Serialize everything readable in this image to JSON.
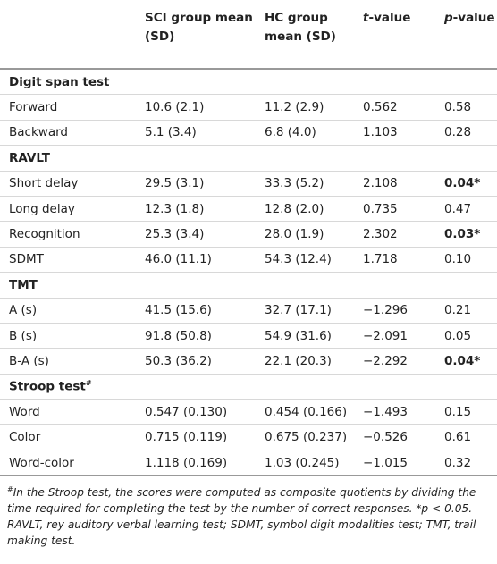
{
  "table": {
    "header": [
      {
        "text": ""
      },
      {
        "text": "SCI group mean (SD)"
      },
      {
        "text": "HC group mean (SD)"
      },
      {
        "italic": "t",
        "text": "-value"
      },
      {
        "italic": "p",
        "text": "-value"
      }
    ],
    "sections": [
      {
        "title": "Digit span test",
        "rows": [
          {
            "cells": [
              "Forward",
              "10.6 (2.1)",
              "11.2 (2.9)",
              "0.562",
              "0.58"
            ]
          },
          {
            "cells": [
              "Backward",
              "5.1 (3.4)",
              "6.8 (4.0)",
              "1.103",
              "0.28"
            ]
          }
        ]
      },
      {
        "title": "RAVLT",
        "rows": [
          {
            "cells": [
              "Short delay",
              "29.5 (3.1)",
              "33.3 (5.2)",
              "2.108",
              "0.04*"
            ],
            "bold_p": true
          },
          {
            "cells": [
              "Long delay",
              "12.3 (1.8)",
              "12.8 (2.0)",
              "0.735",
              "0.47"
            ]
          },
          {
            "cells": [
              "Recognition",
              "25.3 (3.4)",
              "28.0 (1.9)",
              "2.302",
              "0.03*"
            ],
            "bold_p": true
          },
          {
            "cells": [
              "SDMT",
              "46.0 (11.1)",
              "54.3 (12.4)",
              "1.718",
              "0.10"
            ]
          }
        ]
      },
      {
        "title": "TMT",
        "rows": [
          {
            "cells": [
              "A (s)",
              "41.5 (15.6)",
              "32.7 (17.1)",
              "−1.296",
              "0.21"
            ]
          },
          {
            "cells": [
              "B (s)",
              "91.8 (50.8)",
              "54.9 (31.6)",
              "−2.091",
              "0.05"
            ]
          },
          {
            "cells": [
              "B-A (s)",
              "50.3 (36.2)",
              "22.1 (20.3)",
              "−2.292",
              "0.04*"
            ],
            "bold_p": true
          }
        ]
      },
      {
        "title": "Stroop test",
        "title_sup": "#",
        "rows": [
          {
            "cells": [
              "Word",
              "0.547 (0.130)",
              "0.454 (0.166)",
              "−1.493",
              "0.15"
            ]
          },
          {
            "cells": [
              "Color",
              "0.715 (0.119)",
              "0.675 (0.237)",
              "−0.526",
              "0.61"
            ]
          },
          {
            "cells": [
              "Word-color",
              "1.118 (0.169)",
              "1.03 (0.245)",
              "−1.015",
              "0.32"
            ]
          }
        ]
      }
    ]
  },
  "footnotes": [
    {
      "sup": "#",
      "text": "In the Stroop test, the scores were computed as composite quotients by dividing the time required for completing the test by the number of correct responses. *p < 0.05."
    },
    {
      "text": "RAVLT, rey auditory verbal learning test; SDMT, symbol digit modalities test; TMT, trail making test."
    }
  ]
}
